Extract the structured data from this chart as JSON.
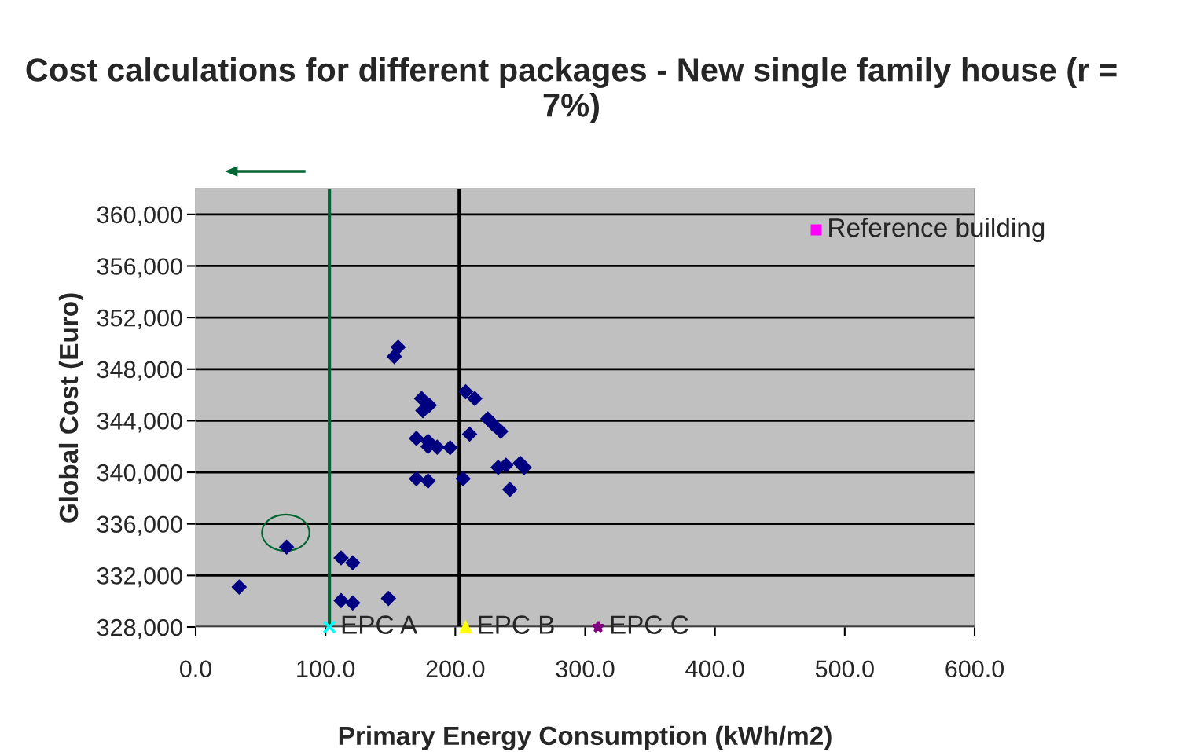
{
  "chart_data": {
    "type": "scatter",
    "title": "Cost calculations for different packages - New single family house (r = 7%)",
    "xlabel": "Primary Energy Consumption (kWh/m2)",
    "ylabel": "Global Cost (Euro)",
    "xlim": [
      0,
      600
    ],
    "ylim": [
      328000,
      362000
    ],
    "xticks": [
      {
        "value": 0,
        "label": "0.0"
      },
      {
        "value": 100,
        "label": "100.0"
      },
      {
        "value": 200,
        "label": "200.0"
      },
      {
        "value": 300,
        "label": "300.0"
      },
      {
        "value": 400,
        "label": "400.0"
      },
      {
        "value": 500,
        "label": "500.0"
      },
      {
        "value": 600,
        "label": "600.0"
      }
    ],
    "yticks": [
      {
        "value": 328000,
        "label": "328,000"
      },
      {
        "value": 332000,
        "label": "332,000"
      },
      {
        "value": 336000,
        "label": "336,000"
      },
      {
        "value": 340000,
        "label": "340,000"
      },
      {
        "value": 344000,
        "label": "344,000"
      },
      {
        "value": 348000,
        "label": "348,000"
      },
      {
        "value": 352000,
        "label": "352,000"
      },
      {
        "value": 356000,
        "label": "356,000"
      },
      {
        "value": 360000,
        "label": "360,000"
      }
    ],
    "grid": "y",
    "legend": false,
    "ref_lines": [
      {
        "axis": "x",
        "value": 103,
        "color": "#006633"
      },
      {
        "axis": "x",
        "value": 203,
        "color": "#000000"
      }
    ],
    "series": [
      {
        "color": "#000080",
        "marker": "diamond",
        "x": [
          156,
          153,
          174,
          180,
          175,
          170,
          179,
          179,
          186,
          196,
          170,
          179,
          208,
          215,
          225,
          229,
          235,
          211,
          206,
          233,
          239,
          250,
          253,
          242,
          70,
          33.5,
          112,
          121,
          112,
          121,
          148.5
        ],
        "values": [
          349700,
          348970,
          345720,
          345200,
          344780,
          342630,
          342410,
          342000,
          341950,
          341910,
          339500,
          339330,
          346250,
          345720,
          344150,
          343730,
          343170,
          342960,
          339500,
          340380,
          340550,
          340700,
          340380,
          338670,
          334200,
          331100,
          333360,
          332980,
          330050,
          329870,
          330220
        ]
      },
      {
        "name": "Reference building",
        "color": "#ff00ff",
        "marker": "square",
        "x": [
          478
        ],
        "values": [
          358800
        ]
      },
      {
        "name": "EPC A",
        "color": "#00ffff",
        "marker": "cross",
        "x": [
          103
        ],
        "values": [
          328000
        ]
      },
      {
        "name": "EPC B",
        "color": "#ffff00",
        "marker": "triangle",
        "x": [
          208
        ],
        "values": [
          328000
        ]
      },
      {
        "name": "EPC C",
        "color": "#800080",
        "marker": "star",
        "x": [
          310
        ],
        "values": [
          328000
        ]
      }
    ]
  }
}
